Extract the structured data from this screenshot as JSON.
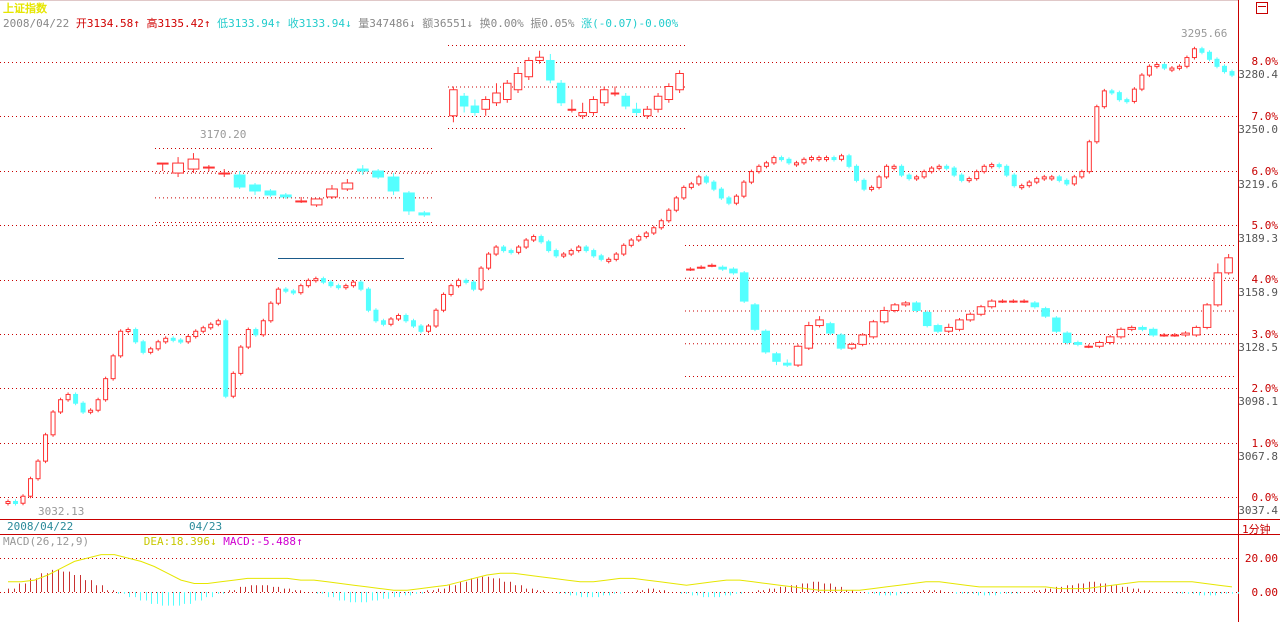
{
  "title": "上证指数",
  "header": {
    "date": "2008/04/22",
    "open_label": "开",
    "open": "3134.58",
    "open_arrow": "↑",
    "high_label": "高",
    "high": "3135.42",
    "high_arrow": "↑",
    "low_label": "低",
    "low": "3133.94",
    "low_arrow": "↑",
    "close_label": "收",
    "close": "3133.94",
    "close_arrow": "↓",
    "volume_label": "量",
    "volume": "347486",
    "volume_arrow": "↓",
    "amount_label": "额",
    "amount": "36551",
    "amount_arrow": "↓",
    "turnover": "换0.00%",
    "amplitude": "振0.05%",
    "change": "涨(-0.07)-0.00%"
  },
  "period_label": "1分钟",
  "date_labels": [
    "2008/04/22",
    "04/23"
  ],
  "annotations": {
    "low": "3032.13",
    "mid_high": "3170.20",
    "high": "3295.66"
  },
  "right_axis": {
    "percent": [
      "8.0%",
      "7.0%",
      "6.0%",
      "5.0%",
      "4.0%",
      "3.0%",
      "2.0%",
      "1.0%",
      "0.0%"
    ],
    "price": [
      "3280.4",
      "3250.0",
      "3219.6",
      "3189.3",
      "3158.9",
      "3128.5",
      "3098.1",
      "3067.8",
      "3037.4"
    ]
  },
  "macd": {
    "label": "MACD(26,12,9)",
    "dea": "DEA:18.396",
    "dea_arrow": "↓",
    "macd_value": "MACD:-5.488",
    "macd_arrow": "↑",
    "ticks": [
      "20.00",
      "0.00"
    ]
  },
  "colors": {
    "up": "#ff3232",
    "down": "#54ffff",
    "dea": "#e6e600",
    "grid": "#c80000",
    "frame": "#c80000"
  },
  "chart_data": {
    "type": "candlestick",
    "interval": "1分钟",
    "ylim": [
      3035,
      3300
    ],
    "segments": [
      {
        "name": "main",
        "closes": [
          3037,
          3036,
          3040,
          3050,
          3060,
          3075,
          3088,
          3095,
          3098,
          3093,
          3088,
          3089,
          3095,
          3107,
          3120,
          3134,
          3135,
          3128,
          3122,
          3124,
          3128,
          3130,
          3129,
          3128,
          3131,
          3134,
          3136,
          3138,
          3140,
          3097,
          3110,
          3125,
          3135,
          3132,
          3140,
          3150,
          3158,
          3157,
          3156,
          3160,
          3163,
          3164,
          3162,
          3160,
          3159,
          3160,
          3162,
          3158,
          3146,
          3140,
          3138,
          3141,
          3143,
          3140,
          3137,
          3134,
          3137,
          3146,
          3155,
          3160,
          3163,
          3162,
          3158,
          3170,
          3178,
          3182,
          3180,
          3179,
          3182,
          3186,
          3188,
          3185,
          3180,
          3177,
          3178,
          3180,
          3182,
          3180,
          3177,
          3175,
          3175,
          3178,
          3183,
          3186,
          3188,
          3190,
          3193,
          3197,
          3203,
          3210,
          3216,
          3218,
          3222,
          3219,
          3215,
          3210,
          3207,
          3211,
          3219,
          3225,
          3228,
          3230,
          3233,
          3232,
          3230,
          3230,
          3232,
          3233,
          3233,
          3233,
          3232,
          3234,
          3228,
          3220,
          3215,
          3216,
          3222,
          3228,
          3228,
          3223,
          3221,
          3222,
          3225,
          3227,
          3228,
          3227,
          3223,
          3220,
          3221,
          3225,
          3228,
          3229,
          3228,
          3223,
          3217,
          3217,
          3219,
          3221,
          3222,
          3222,
          3220,
          3218,
          3222,
          3225,
          3242,
          3262,
          3271,
          3270,
          3266,
          3265,
          3272,
          3280,
          3285,
          3286,
          3284,
          3284,
          3285,
          3290,
          3295,
          3293,
          3289,
          3285,
          3282,
          3280
        ]
      },
      {
        "name": "inset_upper",
        "ohlc": [
          [
            3229,
            3229,
            3229,
            3225
          ],
          [
            3224,
            3229,
            3232,
            3222
          ],
          [
            3226,
            3231,
            3234,
            3224
          ],
          [
            3227,
            3227,
            3228,
            3225
          ],
          [
            3224,
            3224,
            3226,
            3222
          ],
          [
            3223,
            3217,
            3225,
            3216
          ],
          [
            3218,
            3215,
            3219,
            3213
          ],
          [
            3215,
            3213,
            3216,
            3212
          ],
          [
            3213,
            3212,
            3214,
            3211
          ],
          [
            3210,
            3210,
            3212,
            3209
          ],
          [
            3208,
            3211,
            3211,
            3207
          ],
          [
            3212,
            3216,
            3218,
            3211
          ],
          [
            3216,
            3219,
            3221,
            3215
          ],
          [
            3226,
            3225,
            3228,
            3223
          ],
          [
            3225,
            3222,
            3226,
            3221
          ],
          [
            3222,
            3215,
            3224,
            3213
          ],
          [
            3214,
            3205,
            3215,
            3203
          ],
          [
            3204,
            3203,
            3205,
            3202
          ]
        ]
      },
      {
        "name": "inset_upper_right",
        "ohlc": [
          [
            3270,
            3278,
            3279,
            3268
          ],
          [
            3276,
            3273,
            3277,
            3271
          ],
          [
            3273,
            3271,
            3275,
            3270
          ],
          [
            3272,
            3275,
            3276,
            3270
          ],
          [
            3274,
            3277,
            3280,
            3273
          ],
          [
            3275,
            3280,
            3281,
            3274
          ],
          [
            3278,
            3283,
            3285,
            3277
          ],
          [
            3282,
            3287,
            3288,
            3281
          ],
          [
            3287,
            3288,
            3290,
            3286
          ],
          [
            3287,
            3281,
            3289,
            3280
          ],
          [
            3280,
            3274,
            3281,
            3273
          ],
          [
            3272,
            3272,
            3275,
            3271
          ],
          [
            3270,
            3271,
            3274,
            3269
          ],
          [
            3271,
            3275,
            3276,
            3270
          ],
          [
            3274,
            3278,
            3279,
            3273
          ],
          [
            3277,
            3277,
            3279,
            3276
          ],
          [
            3276,
            3273,
            3277,
            3272
          ],
          [
            3272,
            3271,
            3274,
            3270
          ],
          [
            3270,
            3272,
            3273,
            3269
          ],
          [
            3272,
            3276,
            3277,
            3271
          ],
          [
            3275,
            3279,
            3280,
            3274
          ],
          [
            3278,
            3283,
            3284,
            3277
          ]
        ]
      },
      {
        "name": "inset_lower_right",
        "ohlc": [
          [
            3182,
            3182,
            3183,
            3181
          ],
          [
            3183,
            3183,
            3184,
            3182
          ],
          [
            3184,
            3184,
            3185,
            3183
          ],
          [
            3183,
            3182,
            3184,
            3181
          ],
          [
            3182,
            3180,
            3183,
            3179
          ],
          [
            3180,
            3165,
            3181,
            3164
          ],
          [
            3163,
            3150,
            3164,
            3149
          ],
          [
            3149,
            3138,
            3150,
            3137
          ],
          [
            3137,
            3133,
            3138,
            3131
          ],
          [
            3132,
            3131,
            3134,
            3130
          ],
          [
            3131,
            3141,
            3142,
            3130
          ],
          [
            3140,
            3152,
            3154,
            3139
          ],
          [
            3152,
            3155,
            3157,
            3151
          ],
          [
            3153,
            3148,
            3154,
            3147
          ],
          [
            3147,
            3140,
            3148,
            3139
          ],
          [
            3140,
            3142,
            3143,
            3139
          ],
          [
            3142,
            3147,
            3148,
            3141
          ],
          [
            3146,
            3154,
            3155,
            3145
          ],
          [
            3154,
            3160,
            3162,
            3153
          ],
          [
            3160,
            3163,
            3164,
            3159
          ],
          [
            3163,
            3164,
            3165,
            3162
          ],
          [
            3164,
            3160,
            3165,
            3159
          ],
          [
            3159,
            3152,
            3160,
            3151
          ],
          [
            3152,
            3149,
            3153,
            3148
          ],
          [
            3149,
            3151,
            3153,
            3148
          ],
          [
            3150,
            3155,
            3156,
            3149
          ],
          [
            3155,
            3158,
            3159,
            3154
          ],
          [
            3158,
            3162,
            3163,
            3157
          ],
          [
            3162,
            3165,
            3166,
            3161
          ],
          [
            3165,
            3165,
            3166,
            3164
          ],
          [
            3165,
            3165,
            3166,
            3164
          ],
          [
            3165,
            3165,
            3166,
            3164
          ],
          [
            3164,
            3162,
            3165,
            3161
          ],
          [
            3161,
            3157,
            3162,
            3156
          ],
          [
            3156,
            3149,
            3157,
            3148
          ],
          [
            3148,
            3143,
            3149,
            3142
          ],
          [
            3143,
            3142,
            3144,
            3141
          ],
          [
            3141,
            3141,
            3142,
            3140
          ],
          [
            3141,
            3143,
            3144,
            3140
          ],
          [
            3143,
            3146,
            3147,
            3142
          ],
          [
            3146,
            3150,
            3151,
            3145
          ],
          [
            3150,
            3151,
            3152,
            3149
          ],
          [
            3151,
            3150,
            3152,
            3149
          ],
          [
            3150,
            3147,
            3151,
            3146
          ],
          [
            3147,
            3147,
            3148,
            3146
          ],
          [
            3147,
            3147,
            3148,
            3146
          ],
          [
            3147,
            3148,
            3149,
            3146
          ],
          [
            3147,
            3151,
            3152,
            3146
          ],
          [
            3151,
            3163,
            3164,
            3150
          ],
          [
            3163,
            3180,
            3185,
            3162
          ],
          [
            3180,
            3188,
            3190,
            3179
          ]
        ]
      }
    ],
    "macd": {
      "dea_curve": [
        6,
        6,
        7,
        10,
        14,
        18,
        20,
        22,
        22,
        20,
        18,
        15,
        11,
        7,
        5,
        5,
        6,
        7,
        8,
        8,
        8,
        8,
        7,
        7,
        6,
        5,
        4,
        3,
        2,
        1,
        1,
        2,
        3,
        4,
        6,
        8,
        10,
        11,
        11,
        10,
        9,
        8,
        7,
        6,
        6,
        7,
        8,
        8,
        7,
        6,
        5,
        4,
        5,
        6,
        7,
        7,
        6,
        5,
        4,
        3,
        2,
        1,
        1,
        1,
        1,
        2,
        3,
        4,
        5,
        6,
        6,
        5,
        4,
        3,
        3,
        3,
        3,
        3,
        3,
        2,
        2,
        2,
        3,
        4,
        5,
        6,
        6,
        6,
        6,
        6,
        5,
        4,
        3
      ],
      "hist": [
        2,
        5,
        8,
        11,
        13,
        12,
        10,
        7,
        4,
        1,
        -1,
        -3,
        -5,
        -7,
        -8,
        -8,
        -7,
        -5,
        -3,
        -1,
        1,
        3,
        4,
        4,
        3,
        2,
        1,
        0,
        -1,
        -3,
        -5,
        -6,
        -6,
        -5,
        -4,
        -3,
        -2,
        -1,
        1,
        2,
        4,
        6,
        8,
        9,
        8,
        6,
        4,
        2,
        1,
        0,
        -1,
        -2,
        -3,
        -3,
        -2,
        -1,
        0,
        1,
        2,
        1,
        0,
        -1,
        -2,
        -3,
        -3,
        -2,
        -1,
        0,
        1,
        2,
        3,
        4,
        5,
        6,
        5,
        3,
        1,
        0,
        -1,
        -2,
        -2,
        -1,
        0,
        1,
        1,
        0,
        -1,
        -1,
        -2,
        -2,
        -1,
        -1,
        0,
        1,
        2,
        3,
        4,
        5,
        6,
        5,
        4,
        3,
        2,
        1,
        0,
        0,
        -1,
        -1,
        -2,
        -2,
        -1,
        -1
      ]
    }
  }
}
